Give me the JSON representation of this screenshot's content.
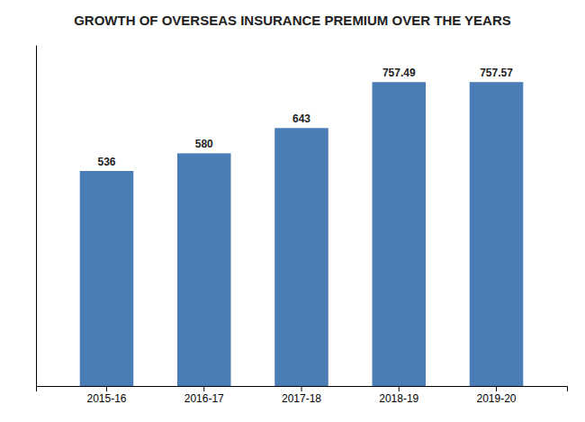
{
  "chart_data": {
    "type": "bar",
    "title": "GROWTH OF OVERSEAS INSURANCE PREMIUM OVER THE YEARS",
    "categories": [
      "2015-16",
      "2016-17",
      "2017-18",
      "2018-19",
      "2019-20"
    ],
    "values": [
      536,
      580,
      643,
      757.49,
      757.57
    ],
    "color": "#4a7db5",
    "ylim": [
      0,
      850
    ],
    "data_labels": true,
    "tick_labels": "x",
    "grid": false
  }
}
